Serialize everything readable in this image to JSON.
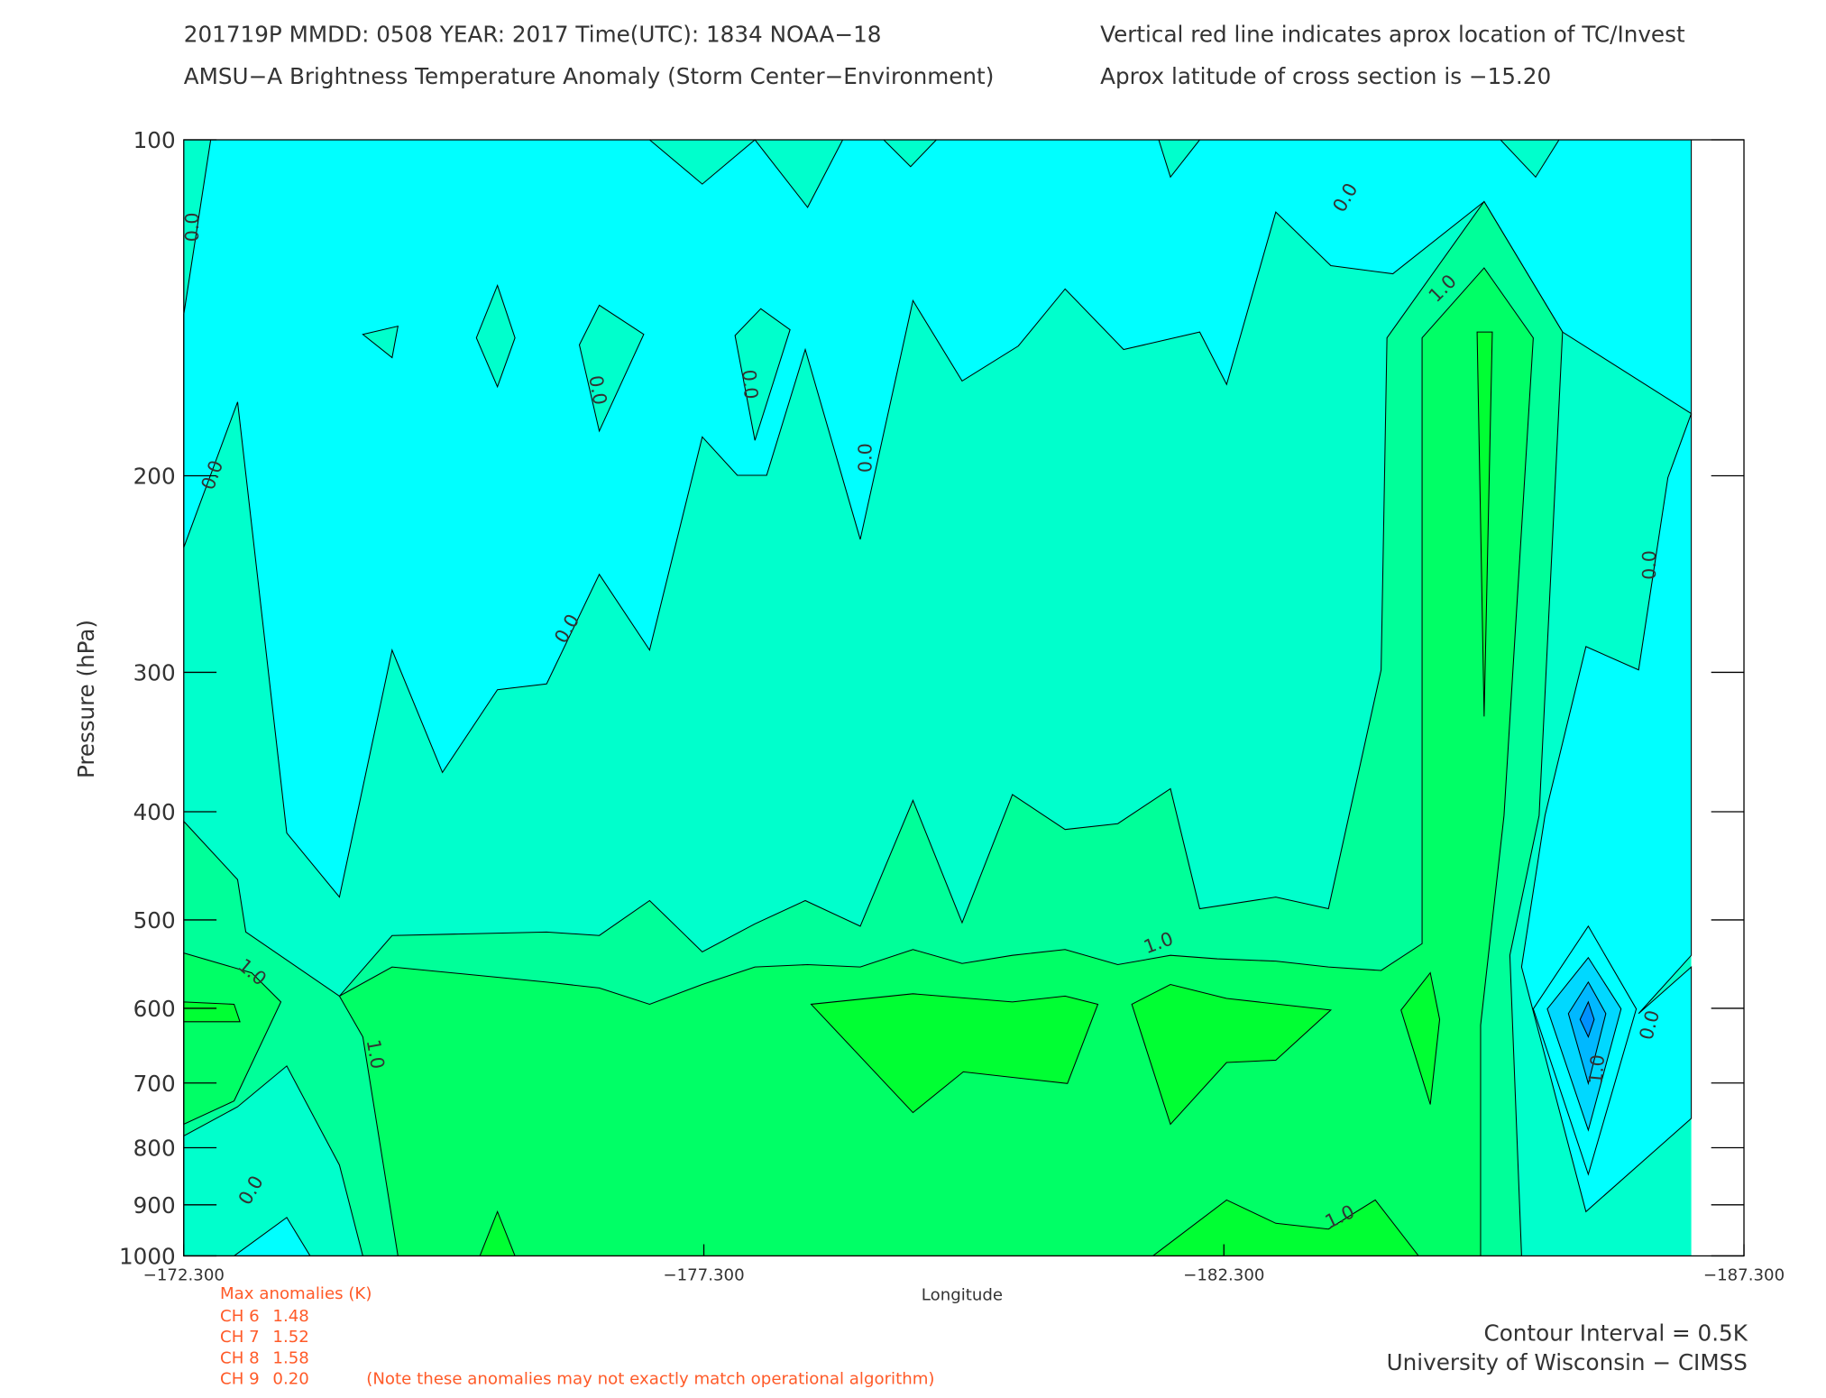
{
  "header": {
    "line1": "201719P  MMDD: 0508 YEAR: 2017 Time(UTC): 1834 NOAA−18",
    "line2": "AMSU−A Brightness Temperature Anomaly (Storm Center−Environment)",
    "note1": "Vertical red line indicates aprox location of TC/Invest",
    "note2": "Aprox latitude of cross section is −15.20"
  },
  "chart_data": {
    "type": "contour",
    "xlabel": "Longitude",
    "ylabel": "Pressure (hPa)",
    "xlim": [
      -172.3,
      -187.3
    ],
    "xticks": [
      {
        "value": -172.3,
        "label": "−172.300"
      },
      {
        "value": -177.3,
        "label": "−177.300"
      },
      {
        "value": -182.3,
        "label": "−182.300"
      },
      {
        "value": -187.3,
        "label": "−187.300"
      }
    ],
    "ylim": [
      100,
      1000
    ],
    "y_scale": "log",
    "yticks": [
      100,
      200,
      300,
      400,
      500,
      600,
      700,
      800,
      900,
      1000
    ],
    "contour_labels": [
      {
        "value": 0,
        "label": "0.0"
      },
      {
        "value": 0,
        "label": "0.0"
      },
      {
        "value": 0,
        "label": "0.0"
      },
      {
        "value": 0,
        "label": "0.0"
      },
      {
        "value": 0,
        "label": "0.0"
      },
      {
        "value": 0,
        "label": "0.0"
      },
      {
        "value": 0,
        "label": "0.0"
      },
      {
        "value": 1,
        "label": "1.0"
      },
      {
        "value": 0,
        "label": "0.0"
      },
      {
        "value": 1,
        "label": "1.0"
      },
      {
        "value": 1,
        "label": "1.0"
      },
      {
        "value": 1,
        "label": "1.0"
      },
      {
        "value": 0,
        "label": "0.0"
      },
      {
        "value": 1,
        "label": "1.0"
      },
      {
        "value": 1,
        "label": "1.0"
      },
      {
        "value": 0,
        "label": "0.0"
      }
    ]
  },
  "anomalies": {
    "title": "Max anomalies (K)",
    "rows": [
      [
        "CH 6",
        "1.48"
      ],
      [
        "CH 7",
        "1.52"
      ],
      [
        "CH 8",
        "1.58"
      ],
      [
        "CH 9",
        "0.20"
      ]
    ],
    "note": "(Note these anomalies may not exactly match operational algorithm)"
  },
  "footer": {
    "interval": "Contour Interval = 0.5K",
    "credit": "University of Wisconsin − CIMSS"
  }
}
